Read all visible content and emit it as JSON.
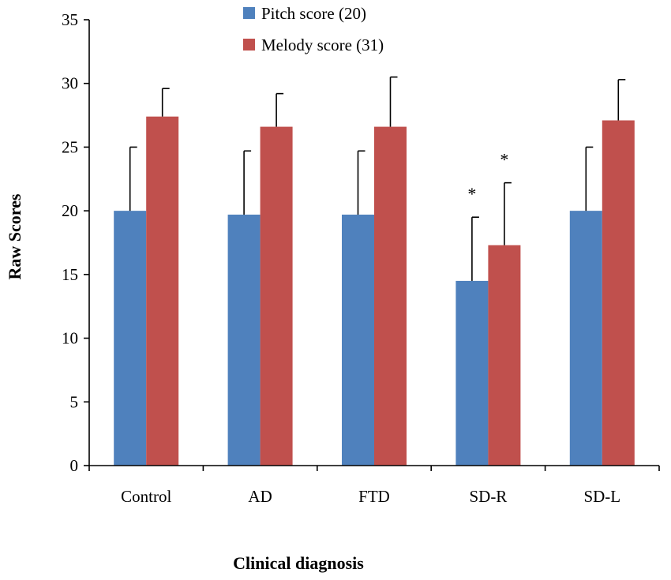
{
  "chart_data": {
    "type": "bar",
    "title": "",
    "xlabel": "Clinical diagnosis",
    "ylabel": "Raw Scores",
    "ylim": [
      0,
      35
    ],
    "yticks": [
      0,
      5,
      10,
      15,
      20,
      25,
      30,
      35
    ],
    "categories": [
      "Control",
      "AD",
      "FTD",
      "SD-R",
      "SD-L"
    ],
    "series": [
      {
        "name": "Pitch score (20)",
        "color": "#4F81BD",
        "values": [
          20,
          19.7,
          19.7,
          14.5,
          20
        ],
        "error": [
          5,
          5,
          5,
          5,
          5
        ]
      },
      {
        "name": "Melody score (31)",
        "color": "#C0504D",
        "values": [
          27.4,
          26.6,
          26.6,
          17.3,
          27.1
        ],
        "error": [
          2.2,
          2.6,
          3.9,
          4.9,
          3.2
        ]
      }
    ],
    "annotations": [
      {
        "category": "SD-R",
        "series": 0,
        "text": "*"
      },
      {
        "category": "SD-R",
        "series": 1,
        "text": "*"
      }
    ],
    "legend_position": "top",
    "grid": false
  }
}
